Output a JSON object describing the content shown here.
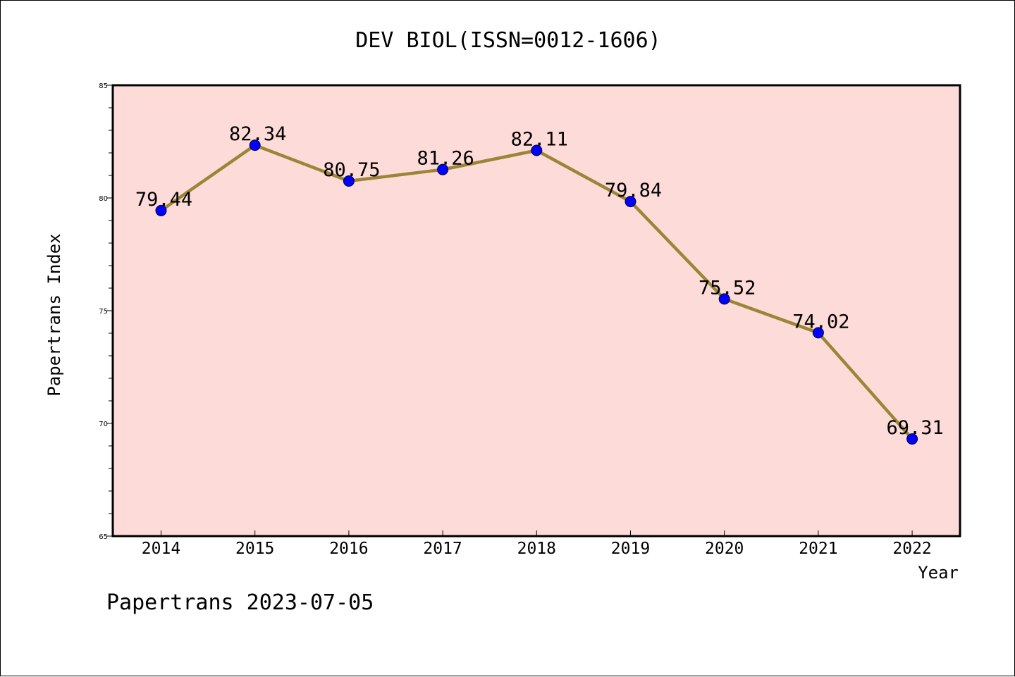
{
  "chart_data": {
    "type": "line",
    "title": "DEV BIOL(ISSN=0012-1606)",
    "xlabel": "Year",
    "ylabel": "Papertrans Index",
    "footer": "Papertrans 2023-07-05",
    "categories": [
      "2014",
      "2015",
      "2016",
      "2017",
      "2018",
      "2019",
      "2020",
      "2021",
      "2022"
    ],
    "series": [
      {
        "values": [
          79.44,
          82.34,
          80.75,
          81.26,
          82.11,
          79.84,
          75.52,
          74.02,
          69.31
        ],
        "data_labels": [
          "79.44",
          "82.34",
          "80.75",
          "81.26",
          "82.11",
          "79.84",
          "75.52",
          "74.02",
          "69.31"
        ]
      }
    ],
    "ylim": [
      65,
      85
    ],
    "yticks": [
      "65",
      "70",
      "75",
      "80",
      "85"
    ],
    "grid": false,
    "legend": "none",
    "colors": {
      "plot_background": "#fddbd8",
      "line": "#9b8537",
      "marker": "#0000ff",
      "axis": "#000000"
    }
  }
}
